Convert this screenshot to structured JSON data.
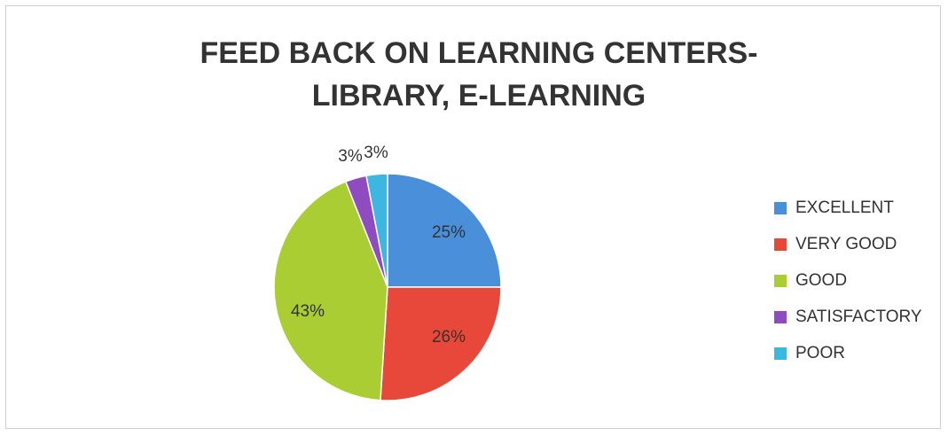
{
  "chart_data": {
    "type": "pie",
    "title_lines": [
      "FEED BACK ON LEARNING CENTERS-",
      "LIBRARY, E-LEARNING"
    ],
    "categories": [
      "EXCELLENT",
      "VERY GOOD",
      "GOOD",
      "SATISFACTORY",
      "POOR"
    ],
    "values": [
      25,
      26,
      43,
      3,
      3
    ],
    "data_labels": [
      "25%",
      "26%",
      "43%",
      "3%",
      "3%"
    ],
    "colors": [
      "#4a8fd9",
      "#e8483a",
      "#a9cd32",
      "#8e4cc0",
      "#3db6e0"
    ],
    "legend_position": "right"
  }
}
